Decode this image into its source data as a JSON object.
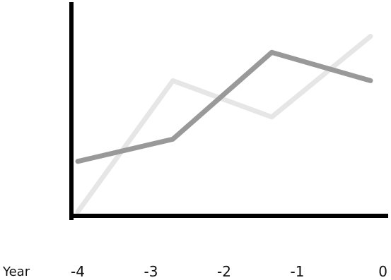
{
  "chart_data": {
    "type": "line",
    "xlabel": "Year",
    "ylabel": "",
    "x": [
      -4,
      -3,
      -2,
      -1,
      0
    ],
    "xtick_labels": [
      "-4",
      "-3",
      "-2",
      "-1",
      "0"
    ],
    "ylim": [
      0,
      100
    ],
    "grid": false,
    "legend": "none",
    "series": [
      {
        "color": "#999999",
        "points": [
          [
            -4,
            27
          ],
          [
            -2.7,
            38
          ],
          [
            -1.35,
            81
          ],
          [
            0,
            67
          ]
        ]
      },
      {
        "color": "#e6e6e6",
        "points": [
          [
            -4,
            2
          ],
          [
            -2.7,
            67
          ],
          [
            -1.35,
            49
          ],
          [
            0,
            89
          ]
        ]
      }
    ]
  }
}
